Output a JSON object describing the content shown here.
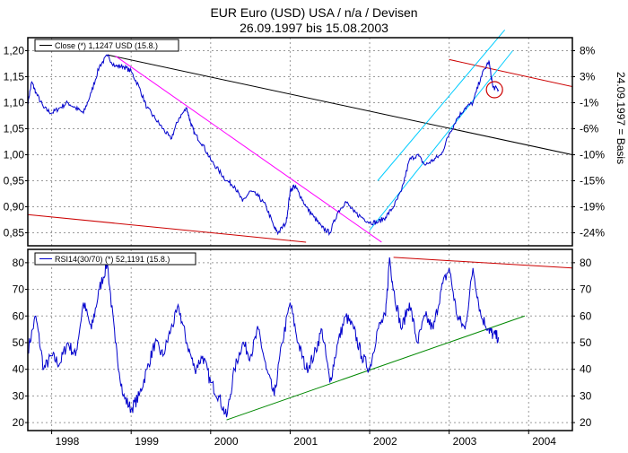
{
  "header": {
    "title_line1": "EUR Euro (USD) USA / n/a / Devisen",
    "title_line2": "26.09.1997 bis 15.08.2003"
  },
  "chart_data": [
    {
      "type": "line",
      "panel": "price",
      "legend": "Close (*) 1,1247 USD (15.8.)",
      "legend_placement": "top-left",
      "ylim": [
        0.825,
        1.225
      ],
      "xlim": [
        1997.7,
        2004.55
      ],
      "y_ticks": [
        "1,20",
        "1,15",
        "1,10",
        "1,05",
        "1,00",
        "0,95",
        "0,90",
        "0,85"
      ],
      "y_tick_values": [
        1.2,
        1.15,
        1.1,
        1.05,
        1.0,
        0.95,
        0.9,
        0.85
      ],
      "right_axis_ticks": [
        "8%",
        "3%",
        "-1%",
        "-6%",
        "-10%",
        "-15%",
        "-19%",
        "-24%"
      ],
      "right_axis_label": "24.09.1997 = Basis",
      "grid": true,
      "series": [
        {
          "color": "#0000cc",
          "x": [
            1997.7,
            1997.75,
            1997.8,
            1997.9,
            1998.0,
            1998.1,
            1998.2,
            1998.3,
            1998.4,
            1998.5,
            1998.6,
            1998.7,
            1998.8,
            1998.9,
            1999.0,
            1999.1,
            1999.2,
            1999.3,
            1999.4,
            1999.5,
            1999.6,
            1999.7,
            1999.75,
            1999.8,
            1999.9,
            2000.0,
            2000.1,
            2000.2,
            2000.3,
            2000.4,
            2000.5,
            2000.6,
            2000.7,
            2000.8,
            2000.85,
            2000.95,
            2001.0,
            2001.05,
            2001.1,
            2001.2,
            2001.3,
            2001.4,
            2001.5,
            2001.6,
            2001.7,
            2001.8,
            2001.9,
            2002.0,
            2002.1,
            2002.2,
            2002.3,
            2002.4,
            2002.5,
            2002.6,
            2002.7,
            2002.8,
            2002.9,
            2003.0,
            2003.1,
            2003.2,
            2003.3,
            2003.4,
            2003.5,
            2003.55,
            2003.62
          ],
          "values": [
            1.1,
            1.14,
            1.12,
            1.09,
            1.08,
            1.09,
            1.1,
            1.09,
            1.08,
            1.12,
            1.17,
            1.19,
            1.17,
            1.17,
            1.16,
            1.13,
            1.09,
            1.07,
            1.05,
            1.03,
            1.07,
            1.09,
            1.06,
            1.04,
            1.02,
            0.99,
            0.97,
            0.95,
            0.94,
            0.91,
            0.93,
            0.92,
            0.9,
            0.86,
            0.85,
            0.87,
            0.93,
            0.94,
            0.93,
            0.9,
            0.88,
            0.86,
            0.85,
            0.89,
            0.91,
            0.89,
            0.88,
            0.87,
            0.87,
            0.88,
            0.9,
            0.93,
            0.99,
            1.0,
            0.98,
            0.99,
            1.0,
            1.04,
            1.07,
            1.09,
            1.1,
            1.15,
            1.18,
            1.13,
            1.125
          ]
        }
      ],
      "trendlines": [
        {
          "color": "#000000",
          "x": [
            1998.7,
            2004.55
          ],
          "values": [
            1.192,
            1.0
          ]
        },
        {
          "color": "#cc0000",
          "x": [
            2003.0,
            2004.55
          ],
          "values": [
            1.183,
            1.131
          ]
        },
        {
          "color": "#cc0000",
          "x": [
            1997.7,
            2001.2
          ],
          "values": [
            0.885,
            0.832
          ]
        },
        {
          "color": "#ff00ff",
          "x": [
            1998.8,
            2002.15
          ],
          "values": [
            1.19,
            0.832
          ]
        },
        {
          "color": "#00ccff",
          "x": [
            2002.1,
            2003.7
          ],
          "values": [
            0.95,
            1.24
          ]
        },
        {
          "color": "#00ccff",
          "x": [
            2002.0,
            2003.8
          ],
          "values": [
            0.855,
            1.2
          ]
        }
      ],
      "marker": {
        "type": "circle",
        "color": "#cc0000",
        "x": 2003.57,
        "value": 1.125
      }
    },
    {
      "type": "line",
      "panel": "rsi",
      "legend": "RSI14(30/70) (*) 52,1191 (15.8.)",
      "legend_placement": "top-left",
      "ylim": [
        17,
        85
      ],
      "xlim": [
        1997.7,
        2004.55
      ],
      "y_ticks": [
        "80",
        "70",
        "60",
        "50",
        "40",
        "30",
        "20"
      ],
      "y_tick_values": [
        80,
        70,
        60,
        50,
        40,
        30,
        20
      ],
      "right_axis_ticks": [
        "80",
        "70",
        "60",
        "50",
        "40",
        "30",
        "20"
      ],
      "x_ticks": [
        "1998",
        "1999",
        "2000",
        "2001",
        "2002",
        "2003",
        "2004"
      ],
      "x_tick_values": [
        1998,
        1999,
        2000,
        2001,
        2002,
        2003,
        2004
      ],
      "grid": true,
      "series": [
        {
          "color": "#0000cc",
          "x": [
            1997.7,
            1997.8,
            1997.9,
            1998.0,
            1998.1,
            1998.2,
            1998.3,
            1998.4,
            1998.5,
            1998.6,
            1998.7,
            1998.8,
            1998.9,
            1999.0,
            1999.1,
            1999.2,
            1999.3,
            1999.4,
            1999.5,
            1999.6,
            1999.7,
            1999.8,
            1999.9,
            2000.0,
            2000.1,
            2000.2,
            2000.3,
            2000.4,
            2000.5,
            2000.6,
            2000.7,
            2000.8,
            2000.9,
            2001.0,
            2001.1,
            2001.2,
            2001.3,
            2001.4,
            2001.5,
            2001.6,
            2001.7,
            2001.8,
            2001.9,
            2002.0,
            2002.1,
            2002.2,
            2002.25,
            2002.3,
            2002.4,
            2002.5,
            2002.6,
            2002.7,
            2002.8,
            2002.9,
            2003.0,
            2003.1,
            2003.2,
            2003.3,
            2003.4,
            2003.5,
            2003.55,
            2003.62
          ],
          "values": [
            47,
            60,
            40,
            45,
            42,
            50,
            45,
            65,
            55,
            70,
            80,
            50,
            30,
            25,
            30,
            40,
            50,
            45,
            55,
            63,
            50,
            40,
            45,
            35,
            30,
            22,
            40,
            50,
            45,
            55,
            40,
            30,
            50,
            65,
            50,
            40,
            45,
            55,
            35,
            50,
            60,
            55,
            45,
            40,
            55,
            60,
            82,
            70,
            55,
            65,
            50,
            60,
            55,
            70,
            78,
            60,
            55,
            78,
            60,
            55,
            53,
            52
          ]
        }
      ],
      "trendlines": [
        {
          "color": "#cc0000",
          "x": [
            2002.3,
            2004.55
          ],
          "values": [
            82,
            78
          ]
        },
        {
          "color": "#008800",
          "x": [
            2000.2,
            2003.95
          ],
          "values": [
            21,
            60
          ]
        }
      ]
    }
  ]
}
